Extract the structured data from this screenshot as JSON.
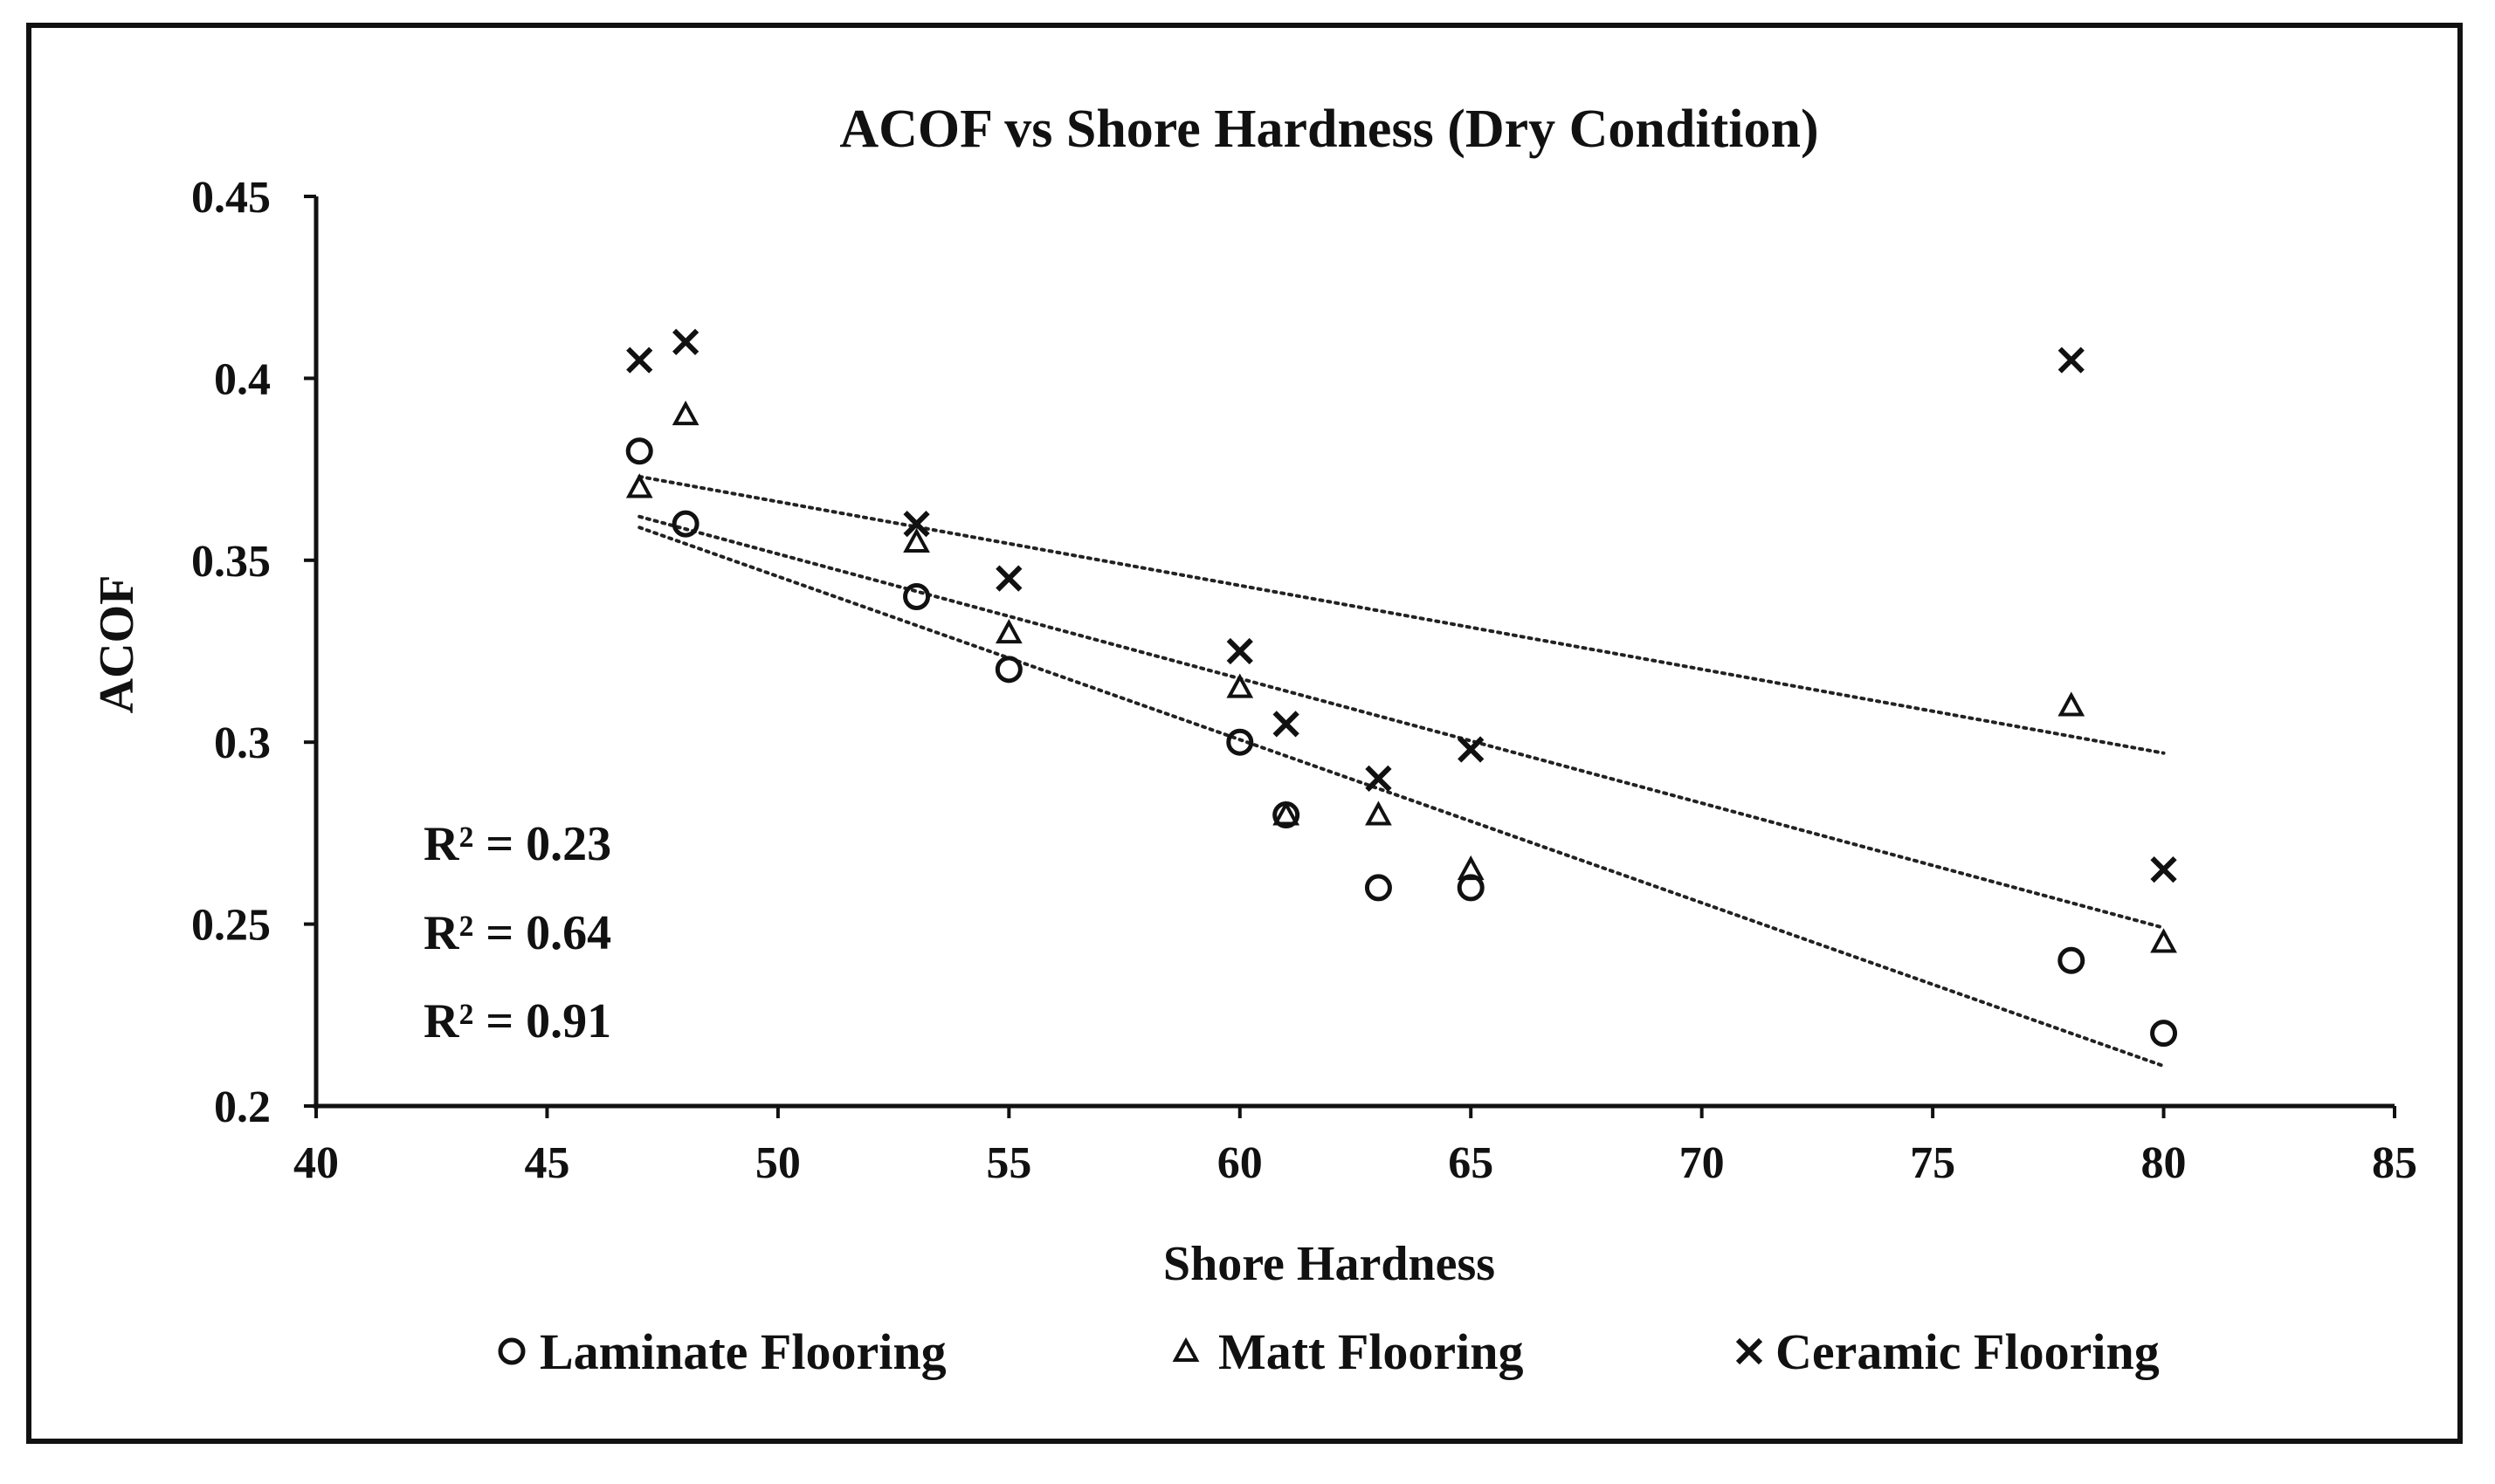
{
  "chart_data": {
    "type": "scatter",
    "title": "ACOF vs Shore Hardness (Dry Condition)",
    "xlabel": "Shore Hardness",
    "ylabel": "ACOF",
    "xlim": [
      40,
      85
    ],
    "ylim": [
      0.2,
      0.45
    ],
    "x_ticks": [
      40,
      45,
      50,
      55,
      60,
      65,
      70,
      75,
      80,
      85
    ],
    "x_tick_labels": [
      "40",
      "45",
      "50",
      "55",
      "60",
      "65",
      "70",
      "75",
      "80",
      "85"
    ],
    "y_ticks": [
      0.2,
      0.25,
      0.3,
      0.35,
      0.4,
      0.45
    ],
    "y_tick_labels": [
      "0.2",
      "0.25",
      "0.3",
      "0.35",
      "0.4",
      "0.45"
    ],
    "grid": false,
    "legend_position": "bottom",
    "series": [
      {
        "name": "Laminate Flooring",
        "marker": "circle",
        "points": [
          [
            47,
            0.38
          ],
          [
            48,
            0.36
          ],
          [
            53,
            0.34
          ],
          [
            55,
            0.32
          ],
          [
            60,
            0.3
          ],
          [
            61,
            0.28
          ],
          [
            63,
            0.26
          ],
          [
            65,
            0.26
          ],
          [
            78,
            0.24
          ],
          [
            80,
            0.22
          ]
        ],
        "trendline": {
          "x": [
            47,
            80
          ],
          "y": [
            0.359,
            0.211
          ]
        }
      },
      {
        "name": "Matt Flooring",
        "marker": "triangle",
        "points": [
          [
            47,
            0.37
          ],
          [
            48,
            0.39
          ],
          [
            53,
            0.355
          ],
          [
            55,
            0.33
          ],
          [
            60,
            0.315
          ],
          [
            61,
            0.28
          ],
          [
            63,
            0.28
          ],
          [
            65,
            0.265
          ],
          [
            78,
            0.31
          ],
          [
            80,
            0.245
          ]
        ],
        "trendline": {
          "x": [
            47,
            80
          ],
          "y": [
            0.362,
            0.249
          ]
        }
      },
      {
        "name": "Ceramic Flooring",
        "marker": "x",
        "points": [
          [
            47,
            0.405
          ],
          [
            48,
            0.41
          ],
          [
            53,
            0.36
          ],
          [
            55,
            0.345
          ],
          [
            60,
            0.325
          ],
          [
            61,
            0.305
          ],
          [
            63,
            0.29
          ],
          [
            65,
            0.298
          ],
          [
            78,
            0.405
          ],
          [
            80,
            0.265
          ]
        ],
        "trendline": {
          "x": [
            47,
            80
          ],
          "y": [
            0.373,
            0.297
          ]
        }
      }
    ],
    "annotations": [
      "R² = 0.23",
      "R² = 0.64",
      "R² = 0.91"
    ]
  }
}
